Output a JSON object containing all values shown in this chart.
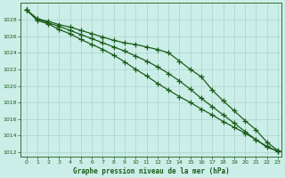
{
  "background_color": "#cceee8",
  "grid_color": "#aad4ce",
  "line_color": "#1a5c1a",
  "xlabel": "Graphe pression niveau de la mer (hPa)",
  "xlim": [
    -0.5,
    23.3
  ],
  "ylim": [
    1011.5,
    1030.0
  ],
  "yticks": [
    1012,
    1014,
    1016,
    1018,
    1020,
    1022,
    1024,
    1026,
    1028
  ],
  "xticks": [
    0,
    1,
    2,
    3,
    4,
    5,
    6,
    7,
    8,
    9,
    10,
    11,
    12,
    13,
    14,
    15,
    16,
    17,
    18,
    19,
    20,
    21,
    22,
    23
  ],
  "series1_x": [
    0,
    1,
    2,
    3,
    4,
    5,
    6,
    7,
    8,
    9,
    10,
    11,
    12,
    13,
    14,
    15,
    16,
    17,
    18,
    19,
    20,
    21,
    22,
    23
  ],
  "series1_y": [
    1029.2,
    1028.1,
    1027.8,
    1027.4,
    1027.1,
    1026.7,
    1026.3,
    1025.9,
    1025.5,
    1025.2,
    1025.0,
    1024.7,
    1024.4,
    1024.0,
    1023.0,
    1022.0,
    1021.1,
    1019.5,
    1018.2,
    1017.0,
    1015.8,
    1014.7,
    1013.2,
    1012.2
  ],
  "series2_x": [
    0,
    1,
    2,
    3,
    4,
    5,
    6,
    7,
    8,
    9,
    10,
    11,
    12,
    13,
    14,
    15,
    16,
    17,
    18,
    19,
    20,
    21,
    22,
    23
  ],
  "series2_y": [
    1029.2,
    1028.1,
    1027.6,
    1027.2,
    1026.7,
    1026.2,
    1025.7,
    1025.2,
    1024.7,
    1024.2,
    1023.6,
    1023.0,
    1022.3,
    1021.5,
    1020.6,
    1019.6,
    1018.5,
    1017.5,
    1016.5,
    1015.5,
    1014.5,
    1013.5,
    1012.6,
    1012.1
  ],
  "series3_x": [
    0,
    1,
    2,
    3,
    4,
    5,
    6,
    7,
    8,
    9,
    10,
    11,
    12,
    13,
    14,
    15,
    16,
    17,
    18,
    19,
    20,
    21,
    22,
    23
  ],
  "series3_y": [
    1029.2,
    1027.9,
    1027.5,
    1026.8,
    1026.3,
    1025.6,
    1025.0,
    1024.4,
    1023.7,
    1022.9,
    1022.0,
    1021.2,
    1020.3,
    1019.5,
    1018.7,
    1018.0,
    1017.2,
    1016.5,
    1015.7,
    1015.0,
    1014.3,
    1013.5,
    1012.7,
    1012.1
  ],
  "marker": "+",
  "markersize": 4,
  "linewidth": 0.9,
  "markeredgewidth": 0.9
}
